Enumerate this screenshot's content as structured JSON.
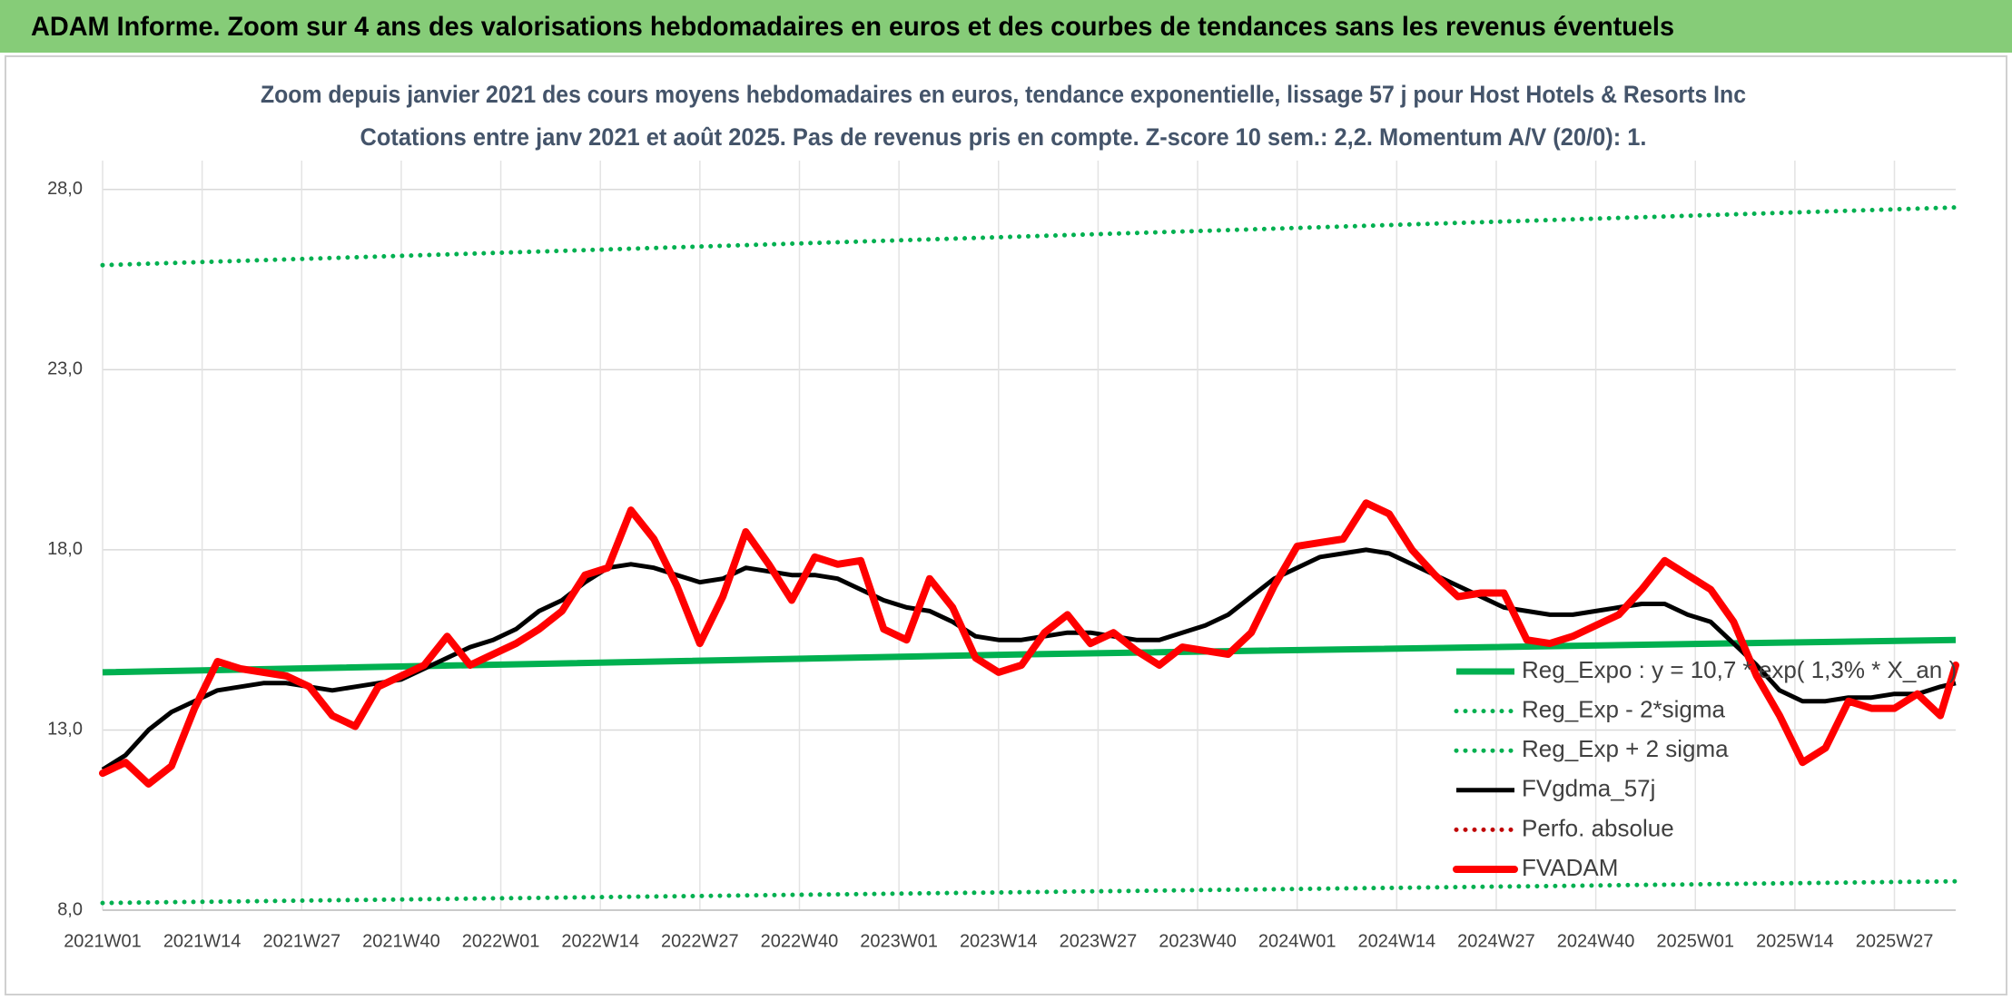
{
  "chart_data": {
    "type": "line",
    "header": "ADAM Informe. Zoom sur 4 ans des valorisations hebdomadaires en euros et des courbes de tendances sans les revenus éventuels",
    "title": "Zoom depuis janvier 2021 des cours moyens hebdomadaires en euros, tendance exponentielle, lissage 57 j pour Host Hotels & Resorts Inc",
    "subtitle": "Cotations entre janv 2021 et août 2025. Pas de revenus pris en compte. Z-score 10 sem.: 2,2. Momentum A/V (20/0): 1.",
    "x": [
      0,
      3,
      6,
      9,
      12,
      15,
      18,
      21,
      24,
      27,
      30,
      33,
      36,
      39,
      42,
      45,
      48,
      51,
      54,
      57,
      60,
      63,
      66,
      69,
      72,
      75,
      78,
      81,
      84,
      87,
      90,
      93,
      96,
      99,
      102,
      105,
      108,
      111,
      114,
      117,
      120,
      123,
      126,
      129,
      132,
      135,
      138,
      141,
      144,
      147,
      150,
      153,
      156,
      159,
      162,
      165,
      168,
      171,
      174,
      177,
      180,
      183,
      186,
      189,
      192,
      195,
      198,
      201,
      204,
      207,
      210,
      213,
      216,
      219,
      222,
      225,
      228,
      231,
      234,
      237,
      240,
      242
    ],
    "xlim": [
      0,
      242
    ],
    "xticks": [
      {
        "value": 0,
        "label": "2021W01"
      },
      {
        "value": 13,
        "label": "2021W14"
      },
      {
        "value": 26,
        "label": "2021W27"
      },
      {
        "value": 39,
        "label": "2021W40"
      },
      {
        "value": 52,
        "label": "2022W01"
      },
      {
        "value": 65,
        "label": "2022W14"
      },
      {
        "value": 78,
        "label": "2022W27"
      },
      {
        "value": 91,
        "label": "2022W40"
      },
      {
        "value": 104,
        "label": "2023W01"
      },
      {
        "value": 117,
        "label": "2023W14"
      },
      {
        "value": 130,
        "label": "2023W27"
      },
      {
        "value": 143,
        "label": "2023W40"
      },
      {
        "value": 156,
        "label": "2024W01"
      },
      {
        "value": 169,
        "label": "2024W14"
      },
      {
        "value": 182,
        "label": "2024W27"
      },
      {
        "value": 195,
        "label": "2024W40"
      },
      {
        "value": 208,
        "label": "2025W01"
      },
      {
        "value": 221,
        "label": "2025W14"
      },
      {
        "value": 234,
        "label": "2025W27"
      }
    ],
    "ylim": [
      8,
      28.8
    ],
    "yticks": [
      {
        "value": 8,
        "label": "8,0"
      },
      {
        "value": 13,
        "label": "13,0"
      },
      {
        "value": 18,
        "label": "18,0"
      },
      {
        "value": 23,
        "label": "23,0"
      },
      {
        "value": 28,
        "label": "28,0"
      }
    ],
    "grid": true,
    "legend": "lower right",
    "series": [
      {
        "name": "Reg_Expo : y = 10,7 * exp( 1,3% *  X_an )",
        "color": "#00b050",
        "style": "solid",
        "x": [
          0,
          121,
          242
        ],
        "values": [
          14.6,
          15.1,
          15.5
        ]
      },
      {
        "name": "Reg_Exp - 2*sigma",
        "color": "#00b050",
        "style": "dotted",
        "x": [
          0,
          121,
          242
        ],
        "values": [
          8.2,
          8.5,
          8.8
        ]
      },
      {
        "name": "Reg_Exp + 2 sigma",
        "color": "#00b050",
        "style": "dotted",
        "x": [
          0,
          121,
          242
        ],
        "values": [
          25.9,
          26.7,
          27.5
        ]
      },
      {
        "name": "FVgdma_57j",
        "color": "#000000",
        "style": "solid",
        "values": [
          11.9,
          12.3,
          13.0,
          13.5,
          13.8,
          14.1,
          14.2,
          14.3,
          14.3,
          14.2,
          14.1,
          14.2,
          14.3,
          14.4,
          14.7,
          15.0,
          15.3,
          15.5,
          15.8,
          16.3,
          16.6,
          17.1,
          17.5,
          17.6,
          17.5,
          17.3,
          17.1,
          17.2,
          17.5,
          17.4,
          17.3,
          17.3,
          17.2,
          16.9,
          16.6,
          16.4,
          16.3,
          16.0,
          15.6,
          15.5,
          15.5,
          15.6,
          15.7,
          15.7,
          15.6,
          15.5,
          15.5,
          15.7,
          15.9,
          16.2,
          16.7,
          17.2,
          17.5,
          17.8,
          17.9,
          18.0,
          17.9,
          17.6,
          17.3,
          17.0,
          16.7,
          16.4,
          16.3,
          16.2,
          16.2,
          16.3,
          16.4,
          16.5,
          16.5,
          16.2,
          16.0,
          15.4,
          14.8,
          14.1,
          13.8,
          13.8,
          13.9,
          13.9,
          14.0,
          14.0,
          14.2,
          14.3
        ]
      },
      {
        "name": "Perfo. absolue",
        "color": "#c00000",
        "style": "dotted",
        "x": [],
        "values": []
      },
      {
        "name": "FVADAM",
        "color": "#ff0000",
        "style": "thick",
        "values": [
          11.8,
          12.1,
          11.5,
          12.0,
          13.6,
          14.9,
          14.7,
          14.6,
          14.5,
          14.2,
          13.4,
          13.1,
          14.2,
          14.5,
          14.8,
          15.6,
          14.8,
          15.1,
          15.4,
          15.8,
          16.3,
          17.3,
          17.5,
          19.1,
          18.3,
          17.0,
          15.4,
          16.7,
          18.5,
          17.6,
          16.6,
          17.8,
          17.6,
          17.7,
          15.8,
          15.5,
          17.2,
          16.4,
          15.0,
          14.6,
          14.8,
          15.7,
          16.2,
          15.4,
          15.7,
          15.2,
          14.8,
          15.3,
          15.2,
          15.1,
          15.7,
          17.0,
          18.1,
          18.2,
          18.3,
          19.3,
          19.0,
          18.0,
          17.3,
          16.7,
          16.8,
          16.8,
          15.5,
          15.4,
          15.6,
          15.9,
          16.2,
          16.9,
          17.7,
          17.3,
          16.9,
          16.0,
          14.5,
          13.4,
          12.1,
          12.5,
          13.8,
          13.6,
          13.6,
          14.0,
          13.4,
          14.8
        ]
      }
    ]
  }
}
